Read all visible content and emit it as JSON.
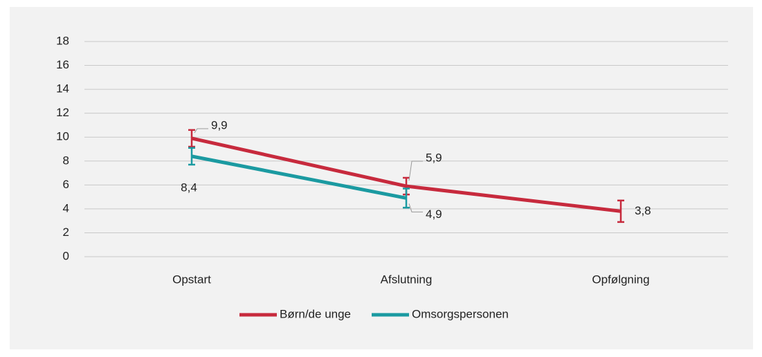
{
  "chart_data": {
    "type": "line",
    "categories": [
      "Opstart",
      "Afslutning",
      "Opfølgning"
    ],
    "series": [
      {
        "name": "Børn/de unge",
        "color": "#c72a3d",
        "values": [
          9.9,
          5.9,
          3.8
        ],
        "value_labels": [
          "9,9",
          "5,9",
          "3,8"
        ],
        "errors": [
          0.7,
          0.7,
          0.9
        ]
      },
      {
        "name": "Omsorgspersonen",
        "color": "#1b9aa1",
        "values": [
          8.4,
          4.9,
          null
        ],
        "value_labels": [
          "8,4",
          "4,9",
          null
        ],
        "errors": [
          0.7,
          0.8,
          null
        ]
      }
    ],
    "ylim": [
      0,
      18
    ],
    "yticks": [
      0,
      2,
      4,
      6,
      8,
      10,
      12,
      14,
      16,
      18
    ],
    "grid": true,
    "legend": "bottom"
  }
}
